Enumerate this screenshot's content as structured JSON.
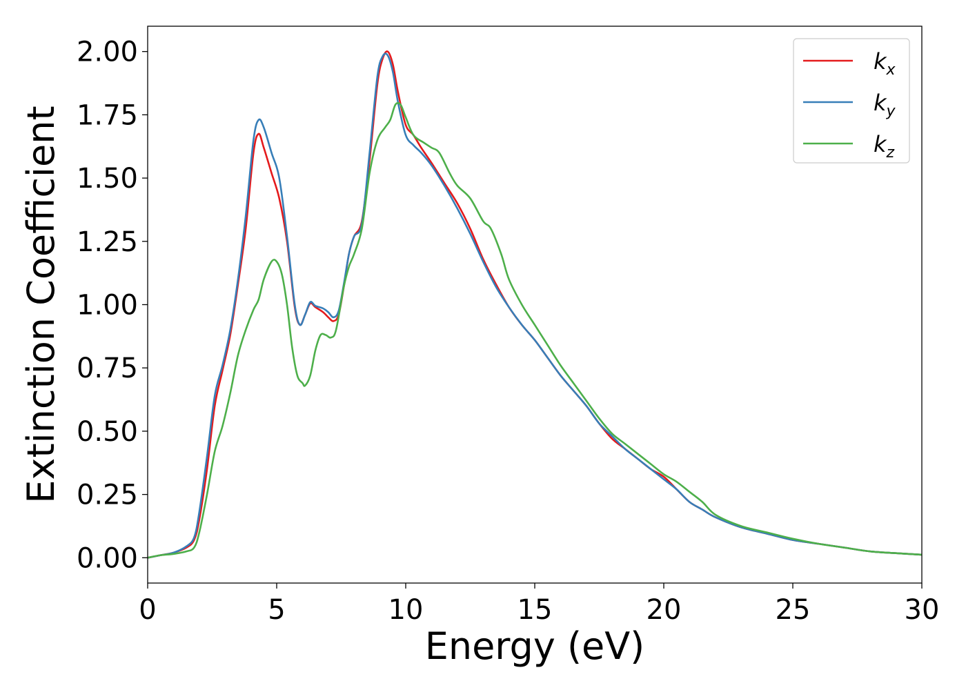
{
  "chart_data": {
    "type": "line",
    "title": "",
    "xlabel": "Energy (eV)",
    "ylabel": "Extinction Coefficient",
    "xlim": [
      0,
      30
    ],
    "ylim": [
      -0.1,
      2.1
    ],
    "xticks": [
      0,
      5,
      10,
      15,
      20,
      25,
      30
    ],
    "xtick_labels": [
      "0",
      "5",
      "10",
      "15",
      "20",
      "25",
      "30"
    ],
    "yticks": [
      0.0,
      0.25,
      0.5,
      0.75,
      1.0,
      1.25,
      1.5,
      1.75,
      2.0
    ],
    "ytick_labels": [
      "0.00",
      "0.25",
      "0.50",
      "0.75",
      "1.00",
      "1.25",
      "1.50",
      "1.75",
      "2.00"
    ],
    "grid": false,
    "legend_position": "top-right",
    "series": [
      {
        "name": "k_x",
        "legend_base": "k",
        "legend_sub": "x",
        "color": "#e41a1c",
        "x": [
          0,
          0.5,
          1.0,
          1.5,
          1.8,
          2.0,
          2.3,
          2.6,
          2.9,
          3.2,
          3.5,
          3.8,
          4.1,
          4.3,
          4.5,
          4.8,
          5.1,
          5.4,
          5.7,
          5.9,
          6.1,
          6.3,
          6.5,
          6.8,
          7.0,
          7.2,
          7.4,
          7.6,
          7.8,
          8.0,
          8.3,
          8.6,
          8.9,
          9.1,
          9.3,
          9.5,
          9.7,
          10.0,
          10.3,
          10.6,
          11.0,
          11.5,
          12.0,
          12.5,
          13.0,
          13.5,
          14.0,
          14.5,
          15.0,
          15.5,
          16.0,
          16.5,
          17.0,
          17.5,
          18.0,
          18.5,
          19.0,
          19.5,
          20.0,
          20.5,
          21.0,
          21.5,
          22.0,
          23.0,
          24.0,
          25.0,
          26.0,
          27.0,
          28.0,
          29.0,
          30.0
        ],
        "y": [
          0.0,
          0.01,
          0.02,
          0.04,
          0.07,
          0.15,
          0.35,
          0.6,
          0.74,
          0.88,
          1.08,
          1.3,
          1.6,
          1.675,
          1.62,
          1.52,
          1.42,
          1.25,
          0.99,
          0.92,
          0.96,
          1.005,
          0.99,
          0.97,
          0.95,
          0.935,
          0.96,
          1.07,
          1.2,
          1.27,
          1.33,
          1.57,
          1.87,
          1.97,
          2.0,
          1.95,
          1.84,
          1.71,
          1.67,
          1.62,
          1.56,
          1.48,
          1.4,
          1.3,
          1.18,
          1.08,
          0.99,
          0.92,
          0.86,
          0.79,
          0.72,
          0.66,
          0.6,
          0.53,
          0.47,
          0.43,
          0.39,
          0.35,
          0.32,
          0.27,
          0.22,
          0.19,
          0.16,
          0.12,
          0.095,
          0.07,
          0.055,
          0.04,
          0.025,
          0.018,
          0.012
        ]
      },
      {
        "name": "k_y",
        "legend_base": "k",
        "legend_sub": "y",
        "color": "#377eb8",
        "x": [
          0,
          0.5,
          1.0,
          1.5,
          1.8,
          2.0,
          2.3,
          2.6,
          2.9,
          3.2,
          3.5,
          3.8,
          4.1,
          4.3,
          4.5,
          4.8,
          5.1,
          5.4,
          5.7,
          5.9,
          6.1,
          6.3,
          6.5,
          6.8,
          7.0,
          7.2,
          7.4,
          7.6,
          7.8,
          8.0,
          8.3,
          8.6,
          8.9,
          9.1,
          9.3,
          9.5,
          9.7,
          10.0,
          10.3,
          10.6,
          11.0,
          11.5,
          12.0,
          12.5,
          13.0,
          13.5,
          14.0,
          14.5,
          15.0,
          15.5,
          16.0,
          16.5,
          17.0,
          17.5,
          18.0,
          18.5,
          19.0,
          19.5,
          20.0,
          20.5,
          21.0,
          21.5,
          22.0,
          23.0,
          24.0,
          25.0,
          26.0,
          27.0,
          28.0,
          29.0,
          30.0
        ],
        "y": [
          0.0,
          0.01,
          0.02,
          0.045,
          0.08,
          0.18,
          0.4,
          0.64,
          0.76,
          0.9,
          1.1,
          1.35,
          1.65,
          1.73,
          1.7,
          1.6,
          1.5,
          1.27,
          1.0,
          0.92,
          0.96,
          1.01,
          0.995,
          0.985,
          0.97,
          0.95,
          0.975,
          1.08,
          1.2,
          1.27,
          1.32,
          1.6,
          1.9,
          1.98,
          1.985,
          1.92,
          1.8,
          1.67,
          1.63,
          1.6,
          1.55,
          1.47,
          1.38,
          1.28,
          1.17,
          1.07,
          0.99,
          0.92,
          0.86,
          0.79,
          0.72,
          0.66,
          0.6,
          0.53,
          0.48,
          0.43,
          0.39,
          0.35,
          0.31,
          0.27,
          0.22,
          0.19,
          0.16,
          0.12,
          0.095,
          0.07,
          0.055,
          0.04,
          0.025,
          0.018,
          0.012
        ]
      },
      {
        "name": "k_z",
        "legend_base": "k",
        "legend_sub": "z",
        "color": "#4daf4a",
        "x": [
          0,
          0.5,
          1.0,
          1.5,
          1.8,
          2.0,
          2.3,
          2.6,
          2.9,
          3.2,
          3.5,
          3.8,
          4.1,
          4.3,
          4.5,
          4.8,
          5.0,
          5.2,
          5.4,
          5.6,
          5.8,
          6.0,
          6.1,
          6.3,
          6.5,
          6.7,
          6.9,
          7.1,
          7.3,
          7.6,
          7.8,
          8.0,
          8.3,
          8.6,
          8.9,
          9.2,
          9.4,
          9.6,
          9.8,
          10.0,
          10.3,
          10.7,
          11.0,
          11.3,
          11.7,
          12.0,
          12.5,
          13.0,
          13.3,
          13.7,
          14.0,
          14.5,
          15.0,
          15.5,
          16.0,
          16.5,
          17.0,
          17.5,
          18.0,
          18.5,
          19.0,
          19.5,
          20.0,
          20.5,
          21.0,
          21.5,
          22.0,
          23.0,
          24.0,
          25.0,
          26.0,
          27.0,
          28.0,
          29.0,
          30.0
        ],
        "y": [
          0.0,
          0.01,
          0.015,
          0.025,
          0.04,
          0.1,
          0.25,
          0.42,
          0.52,
          0.65,
          0.8,
          0.9,
          0.98,
          1.02,
          1.1,
          1.17,
          1.17,
          1.12,
          1.0,
          0.83,
          0.72,
          0.69,
          0.68,
          0.72,
          0.82,
          0.88,
          0.88,
          0.87,
          0.9,
          1.07,
          1.15,
          1.2,
          1.3,
          1.52,
          1.65,
          1.7,
          1.73,
          1.79,
          1.79,
          1.74,
          1.67,
          1.64,
          1.62,
          1.6,
          1.52,
          1.47,
          1.42,
          1.33,
          1.3,
          1.2,
          1.1,
          1.0,
          0.92,
          0.84,
          0.76,
          0.69,
          0.62,
          0.55,
          0.49,
          0.45,
          0.41,
          0.37,
          0.33,
          0.3,
          0.26,
          0.22,
          0.17,
          0.125,
          0.1,
          0.075,
          0.055,
          0.04,
          0.025,
          0.018,
          0.012
        ]
      }
    ]
  }
}
